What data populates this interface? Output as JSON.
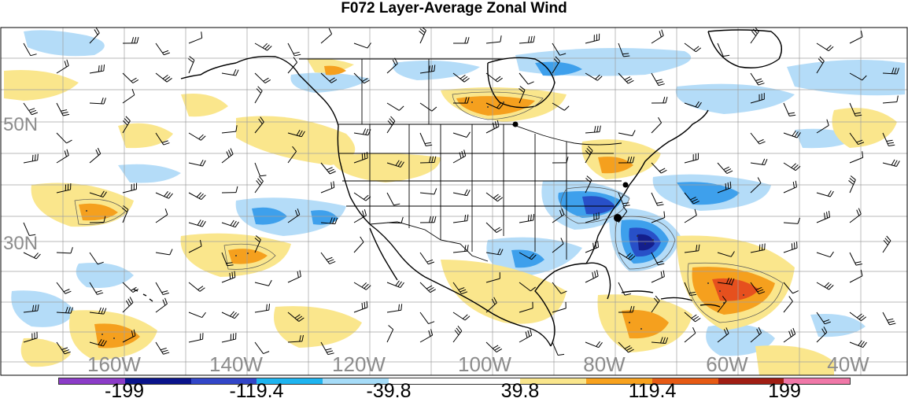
{
  "title": "F072 Layer-Average Zonal Wind",
  "latitude_labels": [
    "50N",
    "30N"
  ],
  "longitude_labels": [
    "160W",
    "140W",
    "120W",
    "100W",
    "80W",
    "60W",
    "40W"
  ],
  "colorbar": {
    "labels": [
      "-199",
      "-119.4",
      "-39.8",
      "39.8",
      "119.4",
      "199"
    ],
    "colors": [
      "#8c3cc8",
      "#0a148c",
      "#3246c8",
      "#1eb4f0",
      "#a6dcf8",
      "#ffffff",
      "#ffffff",
      "#fae68c",
      "#f8a21e",
      "#e65a14",
      "#a01e14",
      "#f078a8"
    ]
  },
  "shading_colors": {
    "light_blue": "#b4dcf8",
    "mid_blue": "#3ea0ec",
    "deep_blue": "#2850c8",
    "dark_blue": "#141e8c",
    "light_yellow": "#fae68c",
    "orange": "#f5a01e",
    "red_orange": "#e6501e"
  }
}
